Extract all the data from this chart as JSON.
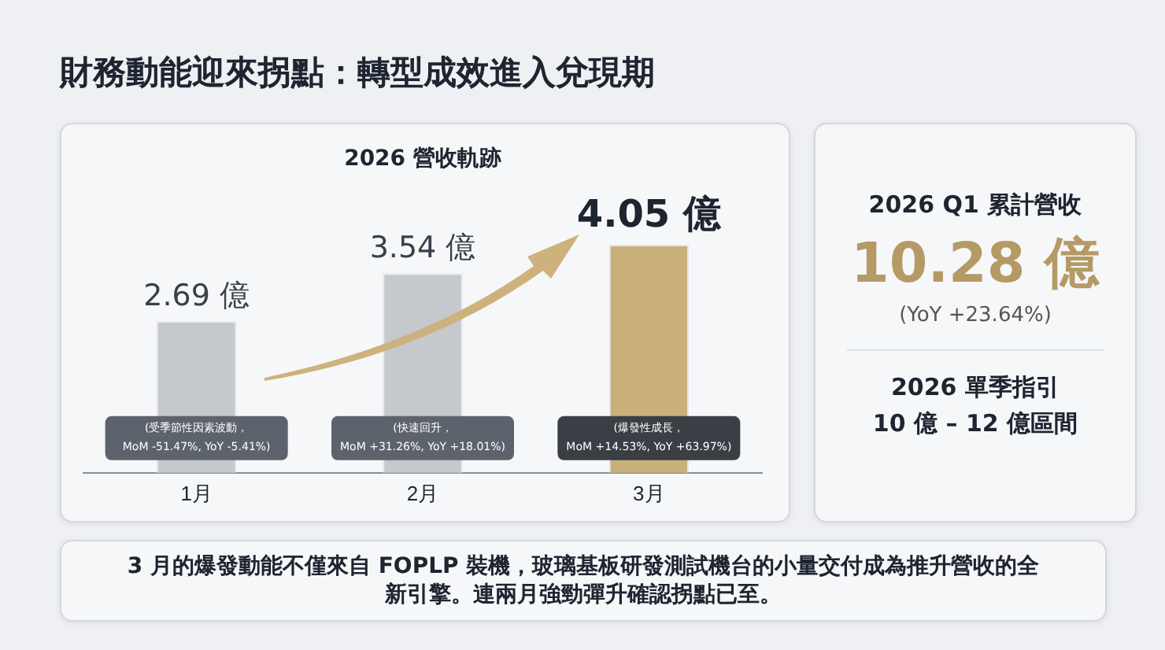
{
  "chart_data": {
    "type": "bar",
    "title": "財務動能迎來拐點：轉型成效進入兌現期",
    "subtitle": "2026 營收軌跡",
    "categories": [
      "1月",
      "2月",
      "3月"
    ],
    "values": [
      2.69,
      3.54,
      4.05
    ],
    "colors": [
      "#c5c8cd",
      "#c5c8cd",
      "#c9b07a"
    ],
    "value_labels": [
      "2.69 億",
      "3.54 億",
      "4.05 億"
    ],
    "grid": false,
    "legend": false,
    "annotations": [
      "(受季節性因素波動，\nMoM -51.47%, YoY -5.41%)",
      "(快速回升，\nMoM +31.26%, YoY +18.01%)",
      "(爆發性成長，\nMoM +14.53%, YoY +63.97%)",
      "2026 Q1 累計營收",
      "10.28 億",
      "(YoY +23.64%)",
      "2026 單季指引",
      "10 億 – 12 億區間",
      "3 月的爆發動能不僅來自 FOPLP 裝機，玻璃基板研發測試機台的小量交付成為推升營收的全新引擎。連兩月強勁彈升確認拐點已至。"
    ]
  }
}
